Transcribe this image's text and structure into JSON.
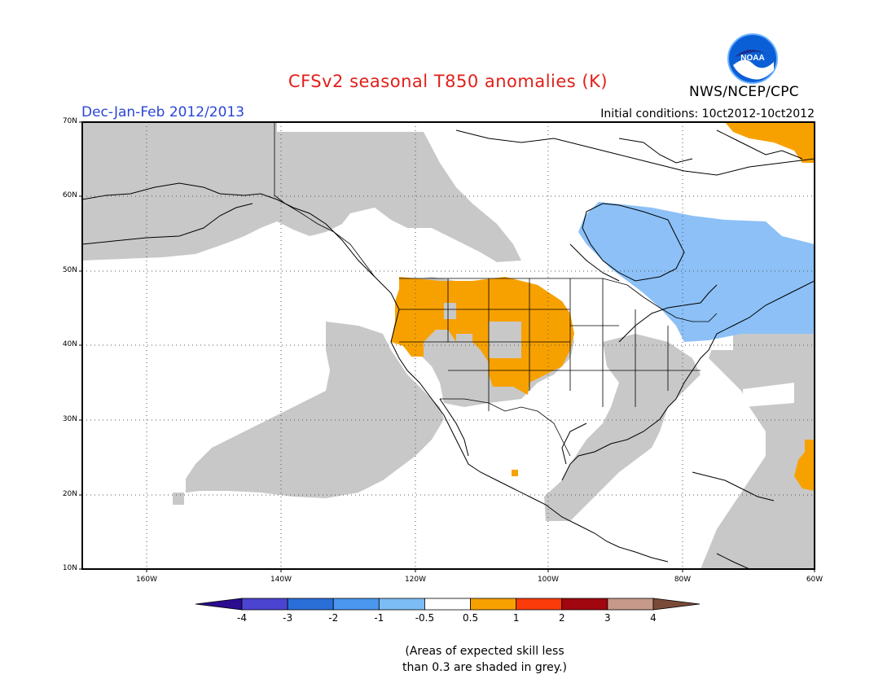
{
  "header": {
    "title": "CFSv2 seasonal T850 anomalies (K)",
    "season": "Dec-Jan-Feb 2012/2013",
    "initial_conditions": "Initial conditions: 10ct2012-10ct2012",
    "agency": "NWS/NCEP/CPC",
    "logo_text": "NOAA",
    "title_color": "#e0201a",
    "season_color": "#2a46d6"
  },
  "map": {
    "lon_range": [
      -173,
      -60
    ],
    "lat_range": [
      10,
      70
    ],
    "lat_labels": [
      "70N",
      "60N",
      "50N",
      "40N",
      "30N",
      "20N",
      "10N"
    ],
    "lon_labels": [
      "160W",
      "140W",
      "120W",
      "100W",
      "80W",
      "60W"
    ],
    "skill_grey": "#c8c8c8",
    "coast_color": "#000000"
  },
  "colorbar": {
    "labels": [
      "-4",
      "-3",
      "-2",
      "-1",
      "-0.5",
      "0.5",
      "1",
      "2",
      "3",
      "4"
    ],
    "colors": [
      "#2b0b8e",
      "#4b44d1",
      "#2a6fd8",
      "#4b97ef",
      "#7cbdf5",
      "#ffffff",
      "#f7a100",
      "#fb3b0a",
      "#a0070f",
      "#c7998b",
      "#7a4a38"
    ]
  },
  "note": {
    "line1": "(Areas of expected skill less",
    "line2": "than 0.3 are shaded in grey.)"
  }
}
